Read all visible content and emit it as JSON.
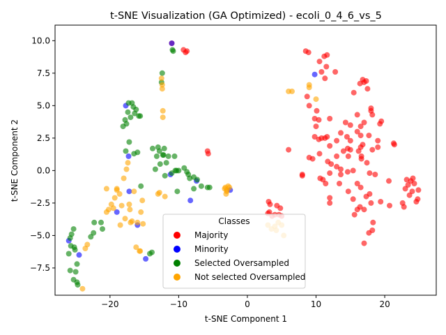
{
  "chart_data": {
    "type": "scatter",
    "title": "t-SNE Visualization (GA Optimized) - ecoli_0_4_6_vs_5",
    "xlabel": "t-SNE Component 1",
    "ylabel": "t-SNE Component 2",
    "xlim": [
      -28,
      27.5
    ],
    "ylim": [
      -9.6,
      11.2
    ],
    "xticks": [
      -20,
      -10,
      0,
      10,
      20
    ],
    "yticks": [
      -7.5,
      -5.0,
      -2.5,
      0.0,
      2.5,
      5.0,
      7.5,
      10.0
    ],
    "grid": false,
    "legend": {
      "title": "Classes",
      "placement": "lower center",
      "entries": [
        "Majority",
        "Minority",
        "Selected Oversampled",
        "Not selected Oversampled"
      ]
    },
    "series": [
      {
        "name": "Majority",
        "color": "#ff0000",
        "points": [
          [
            -11.0,
            9.8
          ],
          [
            -9.3,
            9.3
          ],
          [
            -8.8,
            9.2
          ],
          [
            -9.0,
            9.1
          ],
          [
            -5.8,
            1.5
          ],
          [
            -5.7,
            1.3
          ],
          [
            3.0,
            -3.3
          ],
          [
            3.2,
            -3.2
          ],
          [
            3.1,
            -2.4
          ],
          [
            3.3,
            -2.6
          ],
          [
            3.6,
            -3.5
          ],
          [
            4.0,
            -3.4
          ],
          [
            4.3,
            -2.7
          ],
          [
            4.6,
            -3.4
          ],
          [
            4.8,
            -2.9
          ],
          [
            5.0,
            -3.5
          ],
          [
            6.0,
            1.6
          ],
          [
            8.0,
            -0.3
          ],
          [
            8.0,
            -0.4
          ],
          [
            8.5,
            9.2
          ],
          [
            8.9,
            9.1
          ],
          [
            8.7,
            5.7
          ],
          [
            9.0,
            5.0
          ],
          [
            9.0,
            1.0
          ],
          [
            9.5,
            0.9
          ],
          [
            9.8,
            4.0
          ],
          [
            9.8,
            2.6
          ],
          [
            10.1,
            4.6
          ],
          [
            10.4,
            3.9
          ],
          [
            10.0,
            3.4
          ],
          [
            10.5,
            8.4
          ],
          [
            10.8,
            7.6
          ],
          [
            10.4,
            2.4
          ],
          [
            10.8,
            2.5
          ],
          [
            10.5,
            1.3
          ],
          [
            10.6,
            -0.6
          ],
          [
            11.2,
            8.8
          ],
          [
            11.6,
            8.9
          ],
          [
            11.3,
            7.1
          ],
          [
            11.5,
            8.0
          ],
          [
            11.3,
            2.5
          ],
          [
            11.6,
            2.6
          ],
          [
            11.0,
            -0.7
          ],
          [
            11.7,
            0.7
          ],
          [
            12.0,
            4.0
          ],
          [
            12.0,
            1.9
          ],
          [
            12.2,
            0.5
          ],
          [
            12.0,
            -0.2
          ],
          [
            12.0,
            -2.1
          ],
          [
            12.0,
            -2.5
          ],
          [
            11.4,
            -1.0
          ],
          [
            12.8,
            7.6
          ],
          [
            13.0,
            2.3
          ],
          [
            13.0,
            1.1
          ],
          [
            13.0,
            0.3
          ],
          [
            13.4,
            -1.0
          ],
          [
            13.6,
            2.9
          ],
          [
            13.6,
            0.1
          ],
          [
            13.6,
            -0.3
          ],
          [
            14.0,
            1.5
          ],
          [
            14.3,
            3.7
          ],
          [
            14.5,
            2.6
          ],
          [
            14.6,
            1.7
          ],
          [
            14.7,
            1.1
          ],
          [
            14.7,
            -1.6
          ],
          [
            14.6,
            -0.1
          ],
          [
            15.0,
            3.5
          ],
          [
            15.0,
            2.3
          ],
          [
            15.0,
            1.6
          ],
          [
            15.5,
            6.0
          ],
          [
            15.4,
            -0.0
          ],
          [
            15.4,
            -2.2
          ],
          [
            15.6,
            -3.4
          ],
          [
            16.0,
            4.3
          ],
          [
            16.0,
            3.0
          ],
          [
            16.2,
            1.5
          ],
          [
            16.0,
            -1.0
          ],
          [
            16.0,
            -3.0
          ],
          [
            16.4,
            6.7
          ],
          [
            16.5,
            3.4
          ],
          [
            16.5,
            2.7
          ],
          [
            16.5,
            1.8
          ],
          [
            16.5,
            -1.3
          ],
          [
            16.4,
            -2.8
          ],
          [
            16.6,
            1.1
          ],
          [
            16.6,
            0.9
          ],
          [
            16.8,
            7.0
          ],
          [
            16.8,
            2.0
          ],
          [
            17.0,
            6.8
          ],
          [
            17.0,
            3.7
          ],
          [
            17.0,
            -3.0
          ],
          [
            17.0,
            -5.6
          ],
          [
            17.3,
            6.9
          ],
          [
            17.3,
            -2.0
          ],
          [
            17.4,
            0.6
          ],
          [
            17.5,
            6.3
          ],
          [
            17.7,
            2.7
          ],
          [
            17.8,
            -0.2
          ],
          [
            17.8,
            -1.8
          ],
          [
            17.7,
            -4.8
          ],
          [
            18.0,
            4.8
          ],
          [
            18.0,
            4.6
          ],
          [
            18.2,
            4.3
          ],
          [
            18.2,
            1.6
          ],
          [
            18.0,
            -2.5
          ],
          [
            18.2,
            -4.6
          ],
          [
            18.3,
            -4.0
          ],
          [
            18.6,
            -0.3
          ],
          [
            19.0,
            2.3
          ],
          [
            19.0,
            1.8
          ],
          [
            19.3,
            3.6
          ],
          [
            19.5,
            3.8
          ],
          [
            19.4,
            -2.4
          ],
          [
            20.6,
            -0.8
          ],
          [
            20.7,
            -2.7
          ],
          [
            21.3,
            2.1
          ],
          [
            21.4,
            2.0
          ],
          [
            22.6,
            -2.5
          ],
          [
            22.8,
            -2.8
          ],
          [
            23.0,
            -1.4
          ],
          [
            23.2,
            -0.7
          ],
          [
            23.4,
            -1.1
          ],
          [
            23.6,
            -1.9
          ],
          [
            23.8,
            -0.8
          ],
          [
            24.0,
            -1.6
          ],
          [
            24.1,
            -0.6
          ],
          [
            24.3,
            -1.0
          ],
          [
            24.6,
            -2.4
          ],
          [
            24.8,
            -2.2
          ],
          [
            24.9,
            -1.5
          ]
        ]
      },
      {
        "name": "Minority",
        "color": "#0000ff",
        "points": [
          [
            -26.0,
            -5.4
          ],
          [
            -24.5,
            -6.5
          ],
          [
            -19.0,
            -3.2
          ],
          [
            -17.7,
            5.0
          ],
          [
            -17.3,
            1.1
          ],
          [
            -17.2,
            -1.6
          ],
          [
            -16.0,
            -4.2
          ],
          [
            -14.8,
            -6.8
          ],
          [
            -11.0,
            9.8
          ],
          [
            -11.2,
            -0.3
          ],
          [
            -8.3,
            -2.3
          ],
          [
            -7.4,
            -0.8
          ],
          [
            -2.5,
            -1.5
          ],
          [
            9.8,
            7.4
          ]
        ]
      },
      {
        "name": "Selected Oversampled",
        "color": "#008000",
        "points": [
          [
            -26.0,
            -6.4
          ],
          [
            -25.8,
            -5.2
          ],
          [
            -25.6,
            -4.9
          ],
          [
            -25.7,
            -5.8
          ],
          [
            -25.8,
            -7.7
          ],
          [
            -25.3,
            -4.5
          ],
          [
            -25.2,
            -5.9
          ],
          [
            -25.1,
            -6.1
          ],
          [
            -25.0,
            -7.8
          ],
          [
            -25.3,
            -8.4
          ],
          [
            -24.8,
            -7.2
          ],
          [
            -24.8,
            -8.6
          ],
          [
            -24.7,
            -8.8
          ],
          [
            -22.8,
            -5.1
          ],
          [
            -22.4,
            -4.8
          ],
          [
            -22.3,
            -4.0
          ],
          [
            -21.3,
            -4.0
          ],
          [
            -21.1,
            -4.5
          ],
          [
            -18.1,
            3.4
          ],
          [
            -17.8,
            3.9
          ],
          [
            -17.6,
            3.6
          ],
          [
            -17.4,
            4.5
          ],
          [
            -17.3,
            5.2
          ],
          [
            -17.2,
            2.2
          ],
          [
            -17.0,
            4.1
          ],
          [
            -16.8,
            5.2
          ],
          [
            -16.6,
            4.9
          ],
          [
            -16.4,
            4.4
          ],
          [
            -16.2,
            4.7
          ],
          [
            -16.0,
            1.4
          ],
          [
            -16.5,
            1.3
          ],
          [
            -17.7,
            1.5
          ],
          [
            -15.8,
            4.2
          ],
          [
            -15.6,
            4.2
          ],
          [
            -15.5,
            -1.2
          ],
          [
            -14.2,
            -6.4
          ],
          [
            -13.9,
            -6.3
          ],
          [
            -13.8,
            1.7
          ],
          [
            -13.4,
            0.1
          ],
          [
            -13.2,
            1.1
          ],
          [
            -13.0,
            1.8
          ],
          [
            -12.8,
            1.5
          ],
          [
            -12.7,
            0.5
          ],
          [
            -12.5,
            6.8
          ],
          [
            -12.4,
            7.5
          ],
          [
            -12.3,
            1.2
          ],
          [
            -12.1,
            1.7
          ],
          [
            -12.2,
            1.2
          ],
          [
            -12.0,
            -0.4
          ],
          [
            -11.8,
            0.6
          ],
          [
            -11.5,
            1.1
          ],
          [
            -11.0,
            -0.2
          ],
          [
            -10.9,
            9.3
          ],
          [
            -10.8,
            9.2
          ],
          [
            -10.6,
            1.1
          ],
          [
            -10.5,
            0.0
          ],
          [
            -10.3,
            0.0
          ],
          [
            -10.0,
            -0.0
          ],
          [
            -10.2,
            -1.6
          ],
          [
            -9.2,
            0.2
          ],
          [
            -8.8,
            -0.1
          ],
          [
            -8.6,
            -0.3
          ],
          [
            -8.4,
            -0.6
          ],
          [
            -7.8,
            -0.5
          ],
          [
            -7.3,
            -0.7
          ],
          [
            -7.8,
            -1.4
          ],
          [
            -6.7,
            -1.2
          ],
          [
            -5.8,
            -1.3
          ],
          [
            -5.5,
            -1.3
          ]
        ]
      },
      {
        "name": "Not selected Oversampled",
        "color": "#ffa500",
        "points": [
          [
            -24.0,
            -9.1
          ],
          [
            -23.6,
            -6.0
          ],
          [
            -23.3,
            -5.7
          ],
          [
            -20.5,
            -1.4
          ],
          [
            -20.5,
            -3.2
          ],
          [
            -20.2,
            -3.0
          ],
          [
            -19.8,
            -2.6
          ],
          [
            -19.5,
            -2.9
          ],
          [
            -19.3,
            -2.1
          ],
          [
            -19.0,
            -1.5
          ],
          [
            -19.0,
            -1.4
          ],
          [
            -18.6,
            -1.8
          ],
          [
            -18.5,
            -4.2
          ],
          [
            -18.3,
            -2.7
          ],
          [
            -18.0,
            -0.6
          ],
          [
            -17.8,
            -3.7
          ],
          [
            -17.6,
            0.1
          ],
          [
            -17.4,
            0.6
          ],
          [
            -17.2,
            -2.6
          ],
          [
            -17.1,
            -3.0
          ],
          [
            -17.0,
            -4.0
          ],
          [
            -16.8,
            -3.9
          ],
          [
            -16.5,
            -1.6
          ],
          [
            -16.2,
            -5.9
          ],
          [
            -16.0,
            -4.0
          ],
          [
            -15.7,
            -6.2
          ],
          [
            -15.6,
            -6.2
          ],
          [
            -15.5,
            -3.2
          ],
          [
            -15.3,
            -2.3
          ],
          [
            -15.2,
            -4.1
          ],
          [
            -13.0,
            -1.8
          ],
          [
            -12.8,
            -1.7
          ],
          [
            -12.5,
            7.1
          ],
          [
            -12.4,
            6.6
          ],
          [
            -12.4,
            6.3
          ],
          [
            -12.3,
            4.6
          ],
          [
            -12.3,
            4.1
          ],
          [
            -12.0,
            -2.0
          ],
          [
            -3.2,
            -1.3
          ],
          [
            -3.0,
            -1.5
          ],
          [
            -3.0,
            -1.6
          ],
          [
            -2.8,
            -1.2
          ],
          [
            -2.6,
            -1.3
          ],
          [
            -3.1,
            -1.8
          ],
          [
            -3.3,
            -1.4
          ],
          [
            6.0,
            6.1
          ],
          [
            6.5,
            6.1
          ],
          [
            9.0,
            6.6
          ],
          [
            9.0,
            6.4
          ],
          [
            10.0,
            5.5
          ],
          [
            3.0,
            -4.2
          ],
          [
            3.5,
            -4.5
          ],
          [
            4.0,
            -4.3
          ],
          [
            4.5,
            -4.0
          ],
          [
            5.0,
            -4.2
          ],
          [
            5.3,
            -5.0
          ],
          [
            4.2,
            -4.6
          ]
        ]
      }
    ]
  }
}
